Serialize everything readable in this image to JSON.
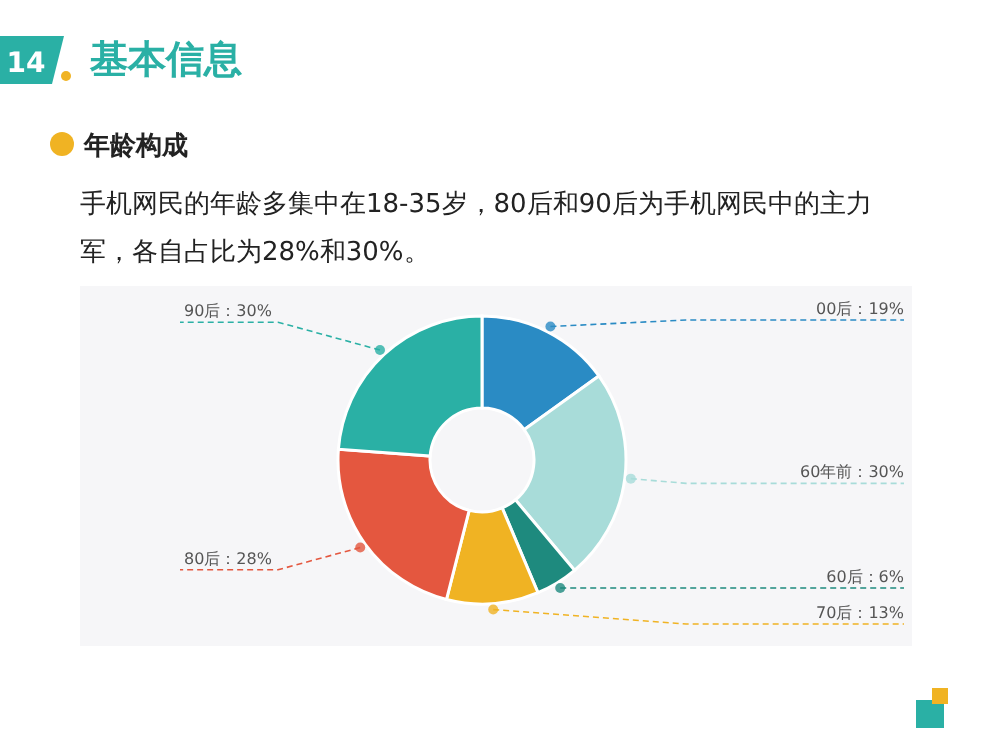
{
  "chart_data": {
    "type": "donut",
    "title": "基本信息",
    "subtitle": "年龄构成",
    "annotations": [
      "14",
      "手机网民的年龄多集中在18-35岁，80后和90后为手机网民中的主力军，各自占比为28%和30%。"
    ],
    "categories": [
      "00后",
      "60年前",
      "60后",
      "70后",
      "80后",
      "90后"
    ],
    "values": [
      19,
      30,
      6,
      13,
      28,
      30
    ],
    "value_labels": [
      "19%",
      "30%",
      "6%",
      "13%",
      "28%",
      "30%"
    ],
    "colors": [
      "#2a8bc4",
      "#a8dcd9",
      "#1e8a7e",
      "#f0b323",
      "#e4573f",
      "#2ab0a5"
    ]
  }
}
